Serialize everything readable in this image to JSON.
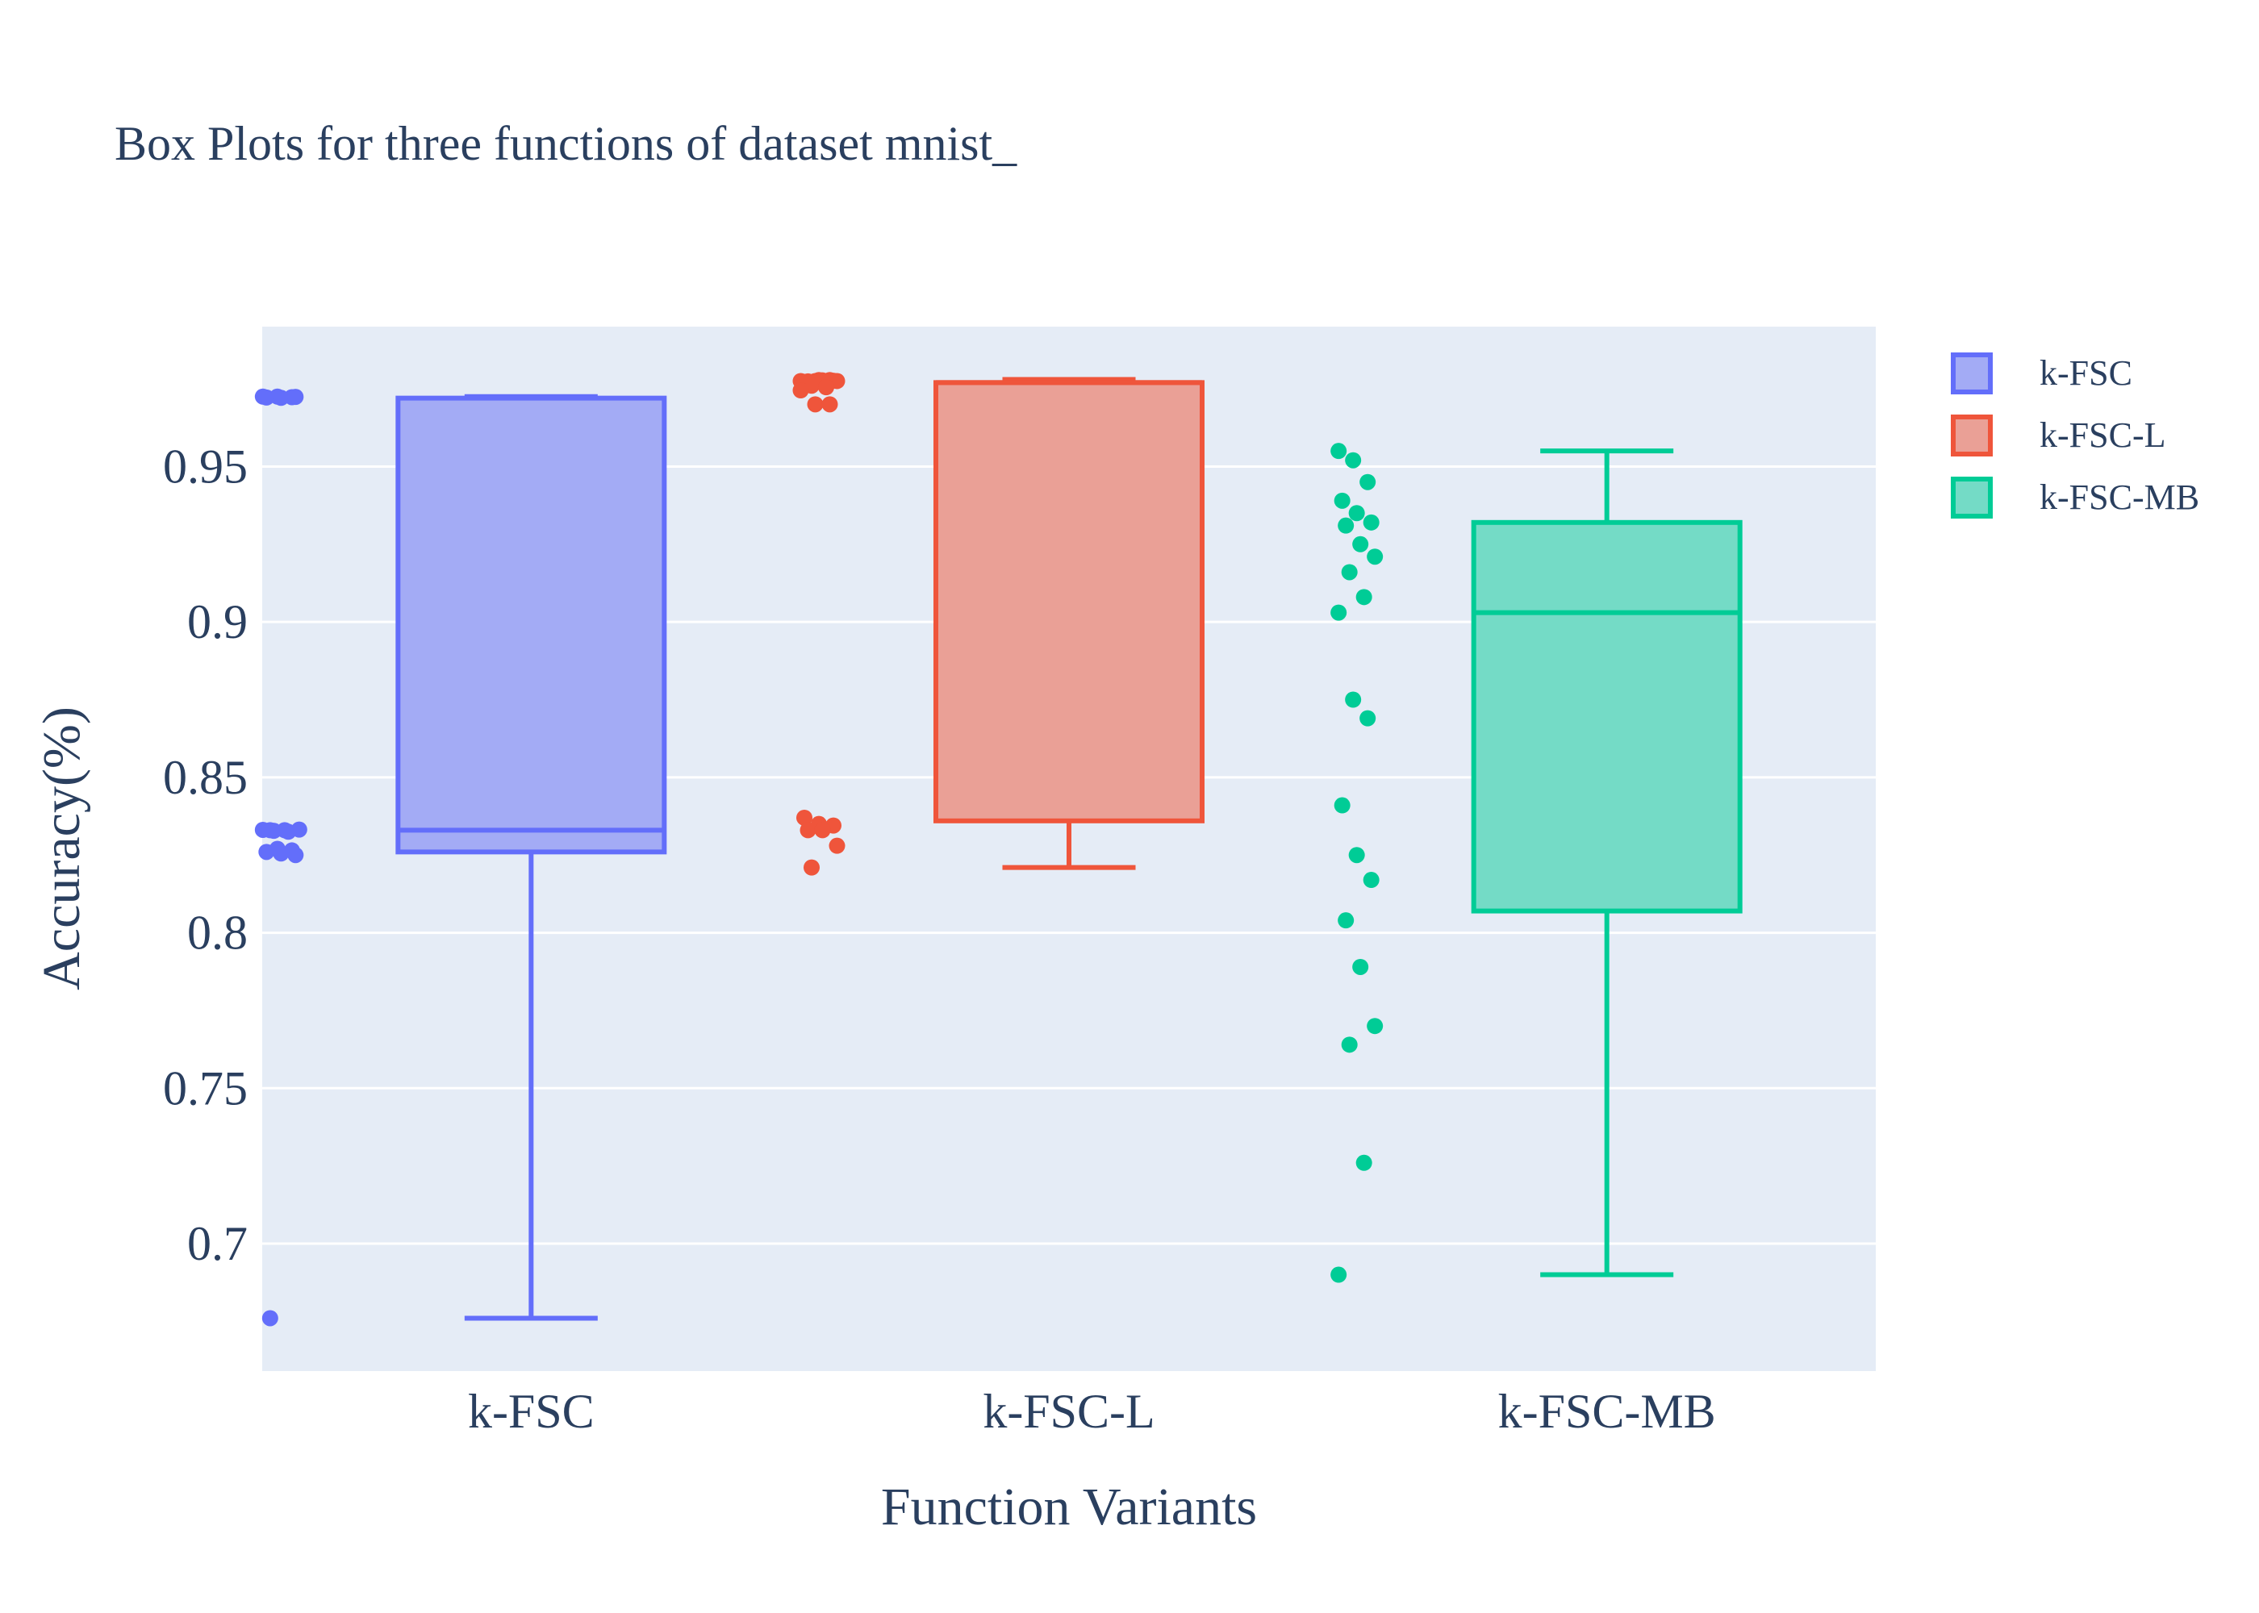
{
  "chart_data": {
    "type": "box",
    "title": "Box Plots for three functions of dataset mnist_",
    "xlabel": "Function Variants",
    "ylabel": "Accuracy(%)",
    "categories": [
      "k-FSC",
      "k-FSC-L",
      "k-FSC-MB"
    ],
    "ylim": [
      0.659,
      0.995
    ],
    "yticks": [
      0.7,
      0.75,
      0.8,
      0.85,
      0.9,
      0.95
    ],
    "ytick_labels": [
      "0.7",
      "0.75",
      "0.8",
      "0.85",
      "0.9",
      "0.95"
    ],
    "grid": true,
    "legend_position": "top-right",
    "plot_background": "#e5ecf6",
    "series": [
      {
        "name": "k-FSC",
        "color": "#636efa",
        "fill": "#a3abf5",
        "box": {
          "min": 0.676,
          "q1": 0.826,
          "median": 0.833,
          "q3": 0.972,
          "max": 0.9725
        },
        "points": [
          0.9725,
          0.9725,
          0.9723,
          0.9722,
          0.9721,
          0.9724,
          0.833,
          0.833,
          0.8332,
          0.8328,
          0.8325,
          0.8331,
          0.827,
          0.8265,
          0.826,
          0.8255,
          0.825,
          0.676
        ]
      },
      {
        "name": "k-FSC-L",
        "color": "#ef553b",
        "fill": "#eaa096",
        "box": {
          "min": 0.821,
          "q1": 0.836,
          "median": 0.977,
          "q3": 0.977,
          "max": 0.978
        },
        "points": [
          0.9775,
          0.9775,
          0.9778,
          0.9772,
          0.9778,
          0.9776,
          0.9774,
          0.9777,
          0.9775,
          0.976,
          0.9755,
          0.9745,
          0.97,
          0.97,
          0.837,
          0.835,
          0.8345,
          0.833,
          0.833,
          0.828,
          0.821
        ]
      },
      {
        "name": "k-FSC-MB",
        "color": "#00cc96",
        "fill": "#74dbc6",
        "box": {
          "min": 0.69,
          "q1": 0.807,
          "median": 0.903,
          "q3": 0.932,
          "max": 0.955
        },
        "points": [
          0.955,
          0.952,
          0.945,
          0.939,
          0.935,
          0.932,
          0.931,
          0.925,
          0.921,
          0.916,
          0.908,
          0.903,
          0.875,
          0.869,
          0.841,
          0.825,
          0.817,
          0.804,
          0.789,
          0.77,
          0.764,
          0.726,
          0.69
        ]
      }
    ]
  }
}
